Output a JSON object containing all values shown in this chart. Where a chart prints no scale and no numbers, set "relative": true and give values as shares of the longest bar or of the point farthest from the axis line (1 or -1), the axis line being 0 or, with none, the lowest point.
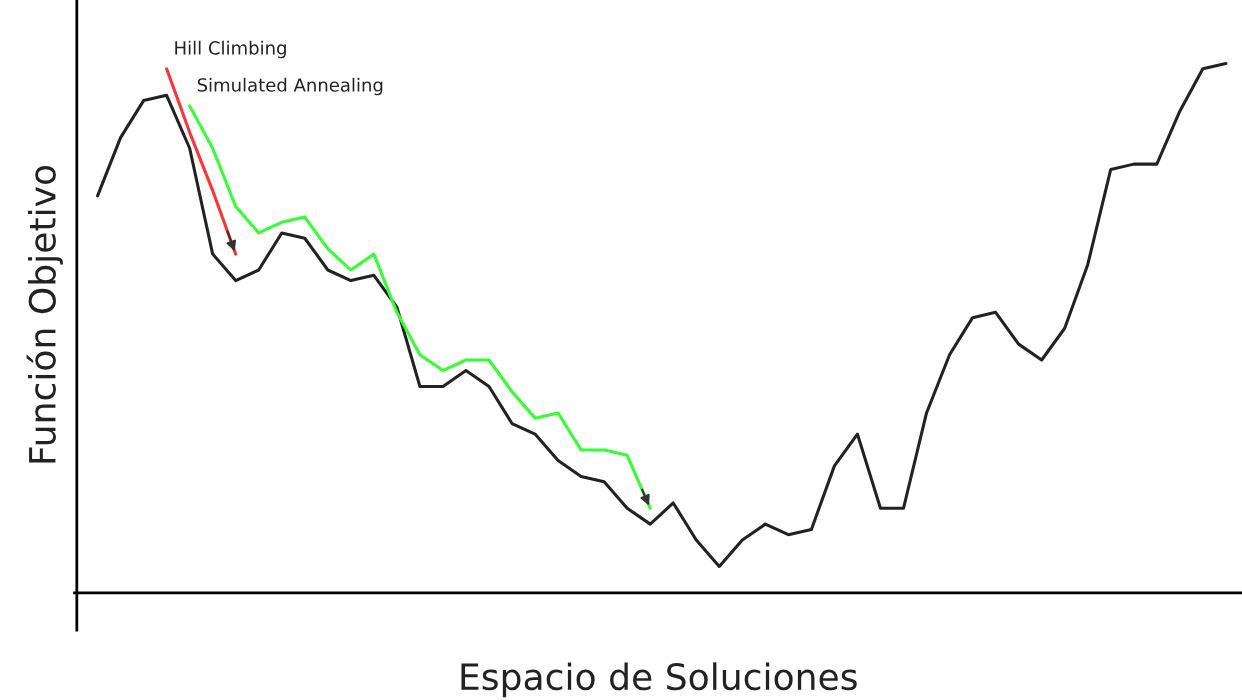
{
  "chart_data": {
    "type": "line",
    "relative": true,
    "xlabel": "Espacio de Soluciones",
    "ylabel": "Función Objetivo",
    "legend": false,
    "marker": "none",
    "line_style": "solid",
    "categories": [
      null,
      null,
      null,
      null,
      null,
      null,
      null,
      null,
      null,
      null,
      null,
      null,
      null,
      null,
      null,
      null,
      null,
      null,
      null,
      null,
      null,
      null,
      null,
      null,
      null,
      null,
      null,
      null,
      null,
      null,
      null,
      null,
      null,
      null,
      null,
      null,
      null,
      null,
      null,
      null,
      null,
      null,
      null,
      null,
      null,
      null,
      null,
      null,
      null,
      null
    ],
    "series": [
      {
        "color": "#222222",
        "values": [
          0.75,
          0.86,
          0.93,
          0.94,
          0.84,
          0.64,
          0.59,
          0.61,
          0.68,
          0.67,
          0.61,
          0.59,
          0.6,
          0.54,
          0.39,
          0.39,
          0.42,
          0.39,
          0.32,
          0.3,
          0.25,
          0.22,
          0.21,
          0.16,
          0.13,
          0.17,
          0.1,
          0.05,
          0.1,
          0.13,
          0.11,
          0.12,
          0.24,
          0.3,
          0.16,
          0.16,
          0.34,
          0.45,
          0.52,
          0.53,
          0.47,
          0.44,
          0.5,
          0.62,
          0.8,
          0.81,
          0.81,
          0.91,
          0.99,
          1.0
        ]
      },
      {
        "name": "Simulated Annealing",
        "color": "#33ff33",
        "values": [
          null,
          null,
          null,
          null,
          0.92,
          0.84,
          0.73,
          0.68,
          0.7,
          0.71,
          0.65,
          0.61,
          0.64,
          0.53,
          0.45,
          0.42,
          0.44,
          0.44,
          0.38,
          0.33,
          0.34,
          0.27,
          0.27,
          0.26,
          0.16,
          null,
          null,
          null,
          null,
          null,
          null,
          null,
          null,
          null,
          null,
          null,
          null,
          null,
          null,
          null,
          null,
          null,
          null,
          null,
          null,
          null,
          null,
          null,
          null,
          null
        ]
      },
      {
        "name": "Hill Climbing",
        "color": "#ff3333",
        "values": [
          null,
          null,
          null,
          0.99,
          0.87,
          0.76,
          0.64,
          null,
          null,
          null,
          null,
          null,
          null,
          null,
          null,
          null,
          null,
          null,
          null,
          null,
          null,
          null,
          null,
          null,
          null,
          null,
          null,
          null,
          null,
          null,
          null,
          null,
          null,
          null,
          null,
          null,
          null,
          null,
          null,
          null,
          null,
          null,
          null,
          null,
          null,
          null,
          null,
          null,
          null,
          null
        ]
      }
    ]
  }
}
